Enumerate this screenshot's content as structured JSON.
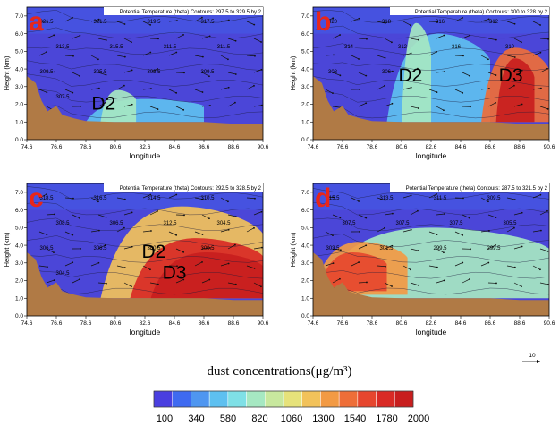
{
  "colors": {
    "dust_scale": [
      "#4A3FE0",
      "#3F6AF0",
      "#4F96F0",
      "#5EC0F0",
      "#7FE0E6",
      "#A6E8C2",
      "#C8E89E",
      "#E6E27A",
      "#F2C25A",
      "#F29A44",
      "#EE6E38",
      "#E6462E",
      "#D92A25",
      "#C81E1E"
    ],
    "background": "#4B46D8",
    "terrain": "#B07A45",
    "panel_label": "#E8261A"
  },
  "colorbar": {
    "title": "dust concentrations(μg/m³)",
    "ticks": [
      "100",
      "340",
      "580",
      "820",
      "1060",
      "1300",
      "1540",
      "1780",
      "2000"
    ]
  },
  "reference_vector": {
    "label": "10"
  },
  "chart_data": [
    {
      "type": "heatmap",
      "panel": "a",
      "header": "Potential Temperature (theta)   Contours: 297.5 to 329.5 by 2",
      "xlabel": "longitude",
      "ylabel": "Height (km)",
      "xlim": [
        74.6,
        90.6
      ],
      "ylim": [
        0.0,
        7.5
      ],
      "xticks": [
        "74.6",
        "76.6",
        "78.6",
        "80.6",
        "82.6",
        "84.6",
        "86.6",
        "88.6",
        "90.6"
      ],
      "yticks": [
        "0.0",
        "1.0",
        "2.0",
        "3.0",
        "4.0",
        "5.0",
        "6.0",
        "7.0"
      ],
      "annotations": [
        {
          "text": "D2",
          "x": 79.8,
          "y": 1.7
        }
      ],
      "contour_labels": [
        "321.5",
        "321.5",
        "319.5",
        "317.5",
        "313.5",
        "315.5",
        "311.5",
        "311.5",
        "309.5",
        "305.5",
        "303.5",
        "309.5",
        "307.5"
      ],
      "dust_plumes": [
        {
          "x0": 78.6,
          "x1": 86.6,
          "y0": 1.0,
          "y1": 2.3,
          "level": 3
        },
        {
          "x0": 79.6,
          "x1": 82.0,
          "y0": 1.0,
          "y1": 2.8,
          "level": 5
        }
      ]
    },
    {
      "type": "heatmap",
      "panel": "b",
      "header": "Potential Temperature (theta)   Contours: 300 to 328 by 2",
      "xlabel": "longitude",
      "ylabel": "Height (km)",
      "xlim": [
        74.6,
        90.6
      ],
      "ylim": [
        0.0,
        7.5
      ],
      "xticks": [
        "74.6",
        "76.6",
        "78.6",
        "80.6",
        "82.6",
        "84.6",
        "86.6",
        "88.6",
        "90.6"
      ],
      "yticks": [
        "0.0",
        "1.0",
        "2.0",
        "3.0",
        "4.0",
        "5.0",
        "6.0",
        "7.0"
      ],
      "annotations": [
        {
          "text": "D2",
          "x": 81.2,
          "y": 3.3
        },
        {
          "text": "D3",
          "x": 88.0,
          "y": 3.3
        }
      ],
      "contour_labels": [
        "320",
        "318",
        "316",
        "312",
        "314",
        "312",
        "316",
        "310",
        "308",
        "306"
      ],
      "dust_plumes": [
        {
          "x0": 79.6,
          "x1": 86.6,
          "y0": 1.0,
          "y1": 6.0,
          "level": 3
        },
        {
          "x0": 80.6,
          "x1": 82.6,
          "y0": 1.0,
          "y1": 6.6,
          "level": 5
        },
        {
          "x0": 86.0,
          "x1": 90.6,
          "y0": 1.0,
          "y1": 5.2,
          "level": 10
        },
        {
          "x0": 87.0,
          "x1": 89.6,
          "y0": 1.0,
          "y1": 4.6,
          "level": 13
        }
      ]
    },
    {
      "type": "heatmap",
      "panel": "c",
      "header": "Potential Temperature (theta)   Contours: 292.5 to 328.5 by 2",
      "xlabel": "longitude",
      "ylabel": "Height (km)",
      "xlim": [
        74.6,
        90.6
      ],
      "ylim": [
        0.0,
        7.5
      ],
      "xticks": [
        "74.6",
        "76.6",
        "78.6",
        "80.6",
        "82.6",
        "84.6",
        "86.6",
        "88.6",
        "90.6"
      ],
      "yticks": [
        "0.0",
        "1.0",
        "2.0",
        "3.0",
        "4.0",
        "5.0",
        "6.0",
        "7.0"
      ],
      "annotations": [
        {
          "text": "D2",
          "x": 83.2,
          "y": 3.3
        },
        {
          "text": "D3",
          "x": 84.6,
          "y": 2.1
        }
      ],
      "contour_labels": [
        "318.5",
        "316.5",
        "314.5",
        "310.5",
        "308.5",
        "306.5",
        "312.5",
        "304.5",
        "306.5",
        "306.5",
        "300.5",
        "300.5",
        "304.5"
      ],
      "dust_plumes": [
        {
          "x0": 79.6,
          "x1": 90.6,
          "y0": 1.0,
          "y1": 6.2,
          "level": 8
        },
        {
          "x0": 81.6,
          "x1": 90.6,
          "y0": 1.0,
          "y1": 4.4,
          "level": 12
        },
        {
          "x0": 83.0,
          "x1": 90.6,
          "y0": 1.0,
          "y1": 3.6,
          "level": 13
        }
      ]
    },
    {
      "type": "heatmap",
      "panel": "d",
      "header": "Potential Temperature (theta)   Contours: 287.5 to 321.5 by 2",
      "xlabel": "longitude",
      "ylabel": "Height (km)",
      "xlim": [
        74.6,
        90.6
      ],
      "ylim": [
        0.0,
        7.5
      ],
      "xticks": [
        "74.6",
        "76.6",
        "78.6",
        "80.6",
        "82.6",
        "84.6",
        "86.6",
        "88.6",
        "90.6"
      ],
      "yticks": [
        "0.0",
        "1.0",
        "2.0",
        "3.0",
        "4.0",
        "5.0",
        "6.0",
        "7.0"
      ],
      "annotations": [],
      "contour_labels": [
        "315.5",
        "313.5",
        "311.5",
        "309.5",
        "307.5",
        "307.5",
        "307.5",
        "305.5",
        "303.5",
        "301.5",
        "299.5",
        "299.5"
      ],
      "dust_plumes": [
        {
          "x0": 74.6,
          "x1": 90.6,
          "y0": 1.0,
          "y1": 5.0,
          "level": 5
        },
        {
          "x0": 74.6,
          "x1": 81.0,
          "y0": 1.2,
          "y1": 4.2,
          "level": 9
        },
        {
          "x0": 75.0,
          "x1": 79.6,
          "y0": 1.4,
          "y1": 3.6,
          "level": 11
        }
      ]
    }
  ]
}
